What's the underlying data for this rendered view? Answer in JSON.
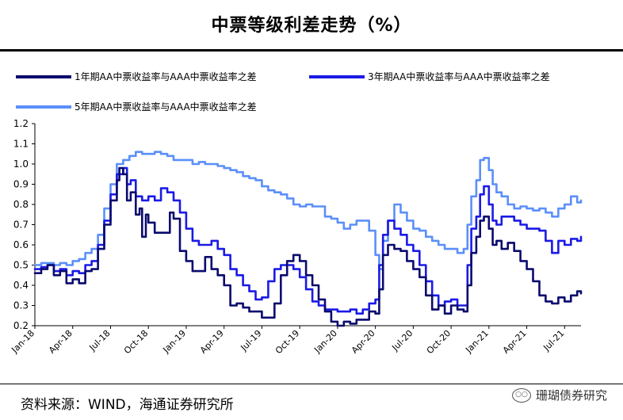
{
  "header": {
    "title": "中票等级利差走势（%）"
  },
  "footer": {
    "source": "资料来源：WIND，海通证券研究所",
    "watermark": "珊瑚债券研究"
  },
  "chart_data": {
    "type": "line",
    "title": "中票等级利差走势（%）",
    "xlabel": "",
    "ylabel": "",
    "ylim": [
      0.2,
      1.2
    ],
    "yticks": [
      "1.2",
      "1.1",
      "1.0",
      "0.9",
      "0.8",
      "0.7",
      "0.6",
      "0.5",
      "0.4",
      "0.3",
      "0.2"
    ],
    "xticks": [
      "Jan-18",
      "Apr-18",
      "Jul-18",
      "Oct-18",
      "Jan-19",
      "Apr-19",
      "Jul-19",
      "Oct-19",
      "Jan-20",
      "Apr-20",
      "Jul-20",
      "Oct-20",
      "Jan-21",
      "Apr-21",
      "Jul-21"
    ],
    "x_range_months": [
      0,
      43.3
    ],
    "series": [
      {
        "name": "1年期AA中票收益率与AAA中票收益率之差",
        "color": "#0a0a6e",
        "points": [
          [
            0,
            0.46
          ],
          [
            0.5,
            0.48
          ],
          [
            1,
            0.5
          ],
          [
            1.5,
            0.45
          ],
          [
            2,
            0.47
          ],
          [
            2.5,
            0.41
          ],
          [
            3,
            0.43
          ],
          [
            3.5,
            0.41
          ],
          [
            4,
            0.47
          ],
          [
            4.5,
            0.48
          ],
          [
            5,
            0.58
          ],
          [
            5.5,
            0.7
          ],
          [
            6,
            0.82
          ],
          [
            6.5,
            0.92
          ],
          [
            6.7,
            0.98
          ],
          [
            7,
            0.95
          ],
          [
            7.3,
            0.82
          ],
          [
            7.6,
            0.86
          ],
          [
            8,
            0.75
          ],
          [
            8.3,
            0.78
          ],
          [
            8.5,
            0.64
          ],
          [
            8.8,
            0.75
          ],
          [
            9,
            0.71
          ],
          [
            9.5,
            0.66
          ],
          [
            10,
            0.66
          ],
          [
            10.5,
            0.66
          ],
          [
            10.7,
            0.76
          ],
          [
            11,
            0.73
          ],
          [
            11.5,
            0.57
          ],
          [
            12,
            0.52
          ],
          [
            12.5,
            0.47
          ],
          [
            13,
            0.47
          ],
          [
            13.5,
            0.54
          ],
          [
            14,
            0.48
          ],
          [
            14.5,
            0.45
          ],
          [
            15,
            0.4
          ],
          [
            15.5,
            0.3
          ],
          [
            16,
            0.31
          ],
          [
            16.5,
            0.29
          ],
          [
            17,
            0.27
          ],
          [
            17.5,
            0.27
          ],
          [
            18,
            0.24
          ],
          [
            18.5,
            0.24
          ],
          [
            19,
            0.31
          ],
          [
            19.5,
            0.45
          ],
          [
            20,
            0.52
          ],
          [
            20.5,
            0.55
          ],
          [
            21,
            0.52
          ],
          [
            21.5,
            0.45
          ],
          [
            22,
            0.4
          ],
          [
            22.5,
            0.33
          ],
          [
            23,
            0.27
          ],
          [
            23.5,
            0.22
          ],
          [
            24,
            0.2
          ],
          [
            24.5,
            0.22
          ],
          [
            25,
            0.21
          ],
          [
            25.5,
            0.23
          ],
          [
            26,
            0.23
          ],
          [
            26.5,
            0.27
          ],
          [
            27,
            0.26
          ],
          [
            27.3,
            0.38
          ],
          [
            27.6,
            0.55
          ],
          [
            28,
            0.6
          ],
          [
            28.5,
            0.58
          ],
          [
            29,
            0.57
          ],
          [
            29.5,
            0.52
          ],
          [
            30,
            0.48
          ],
          [
            30.5,
            0.44
          ],
          [
            31,
            0.35
          ],
          [
            31.5,
            0.28
          ],
          [
            32,
            0.3
          ],
          [
            32.5,
            0.26
          ],
          [
            33,
            0.3
          ],
          [
            33.5,
            0.28
          ],
          [
            34,
            0.27
          ],
          [
            34.3,
            0.4
          ],
          [
            34.6,
            0.56
          ],
          [
            35,
            0.64
          ],
          [
            35.3,
            0.72
          ],
          [
            35.6,
            0.74
          ],
          [
            36,
            0.68
          ],
          [
            36.3,
            0.6
          ],
          [
            36.6,
            0.62
          ],
          [
            37,
            0.58
          ],
          [
            37.5,
            0.61
          ],
          [
            38,
            0.57
          ],
          [
            38.5,
            0.52
          ],
          [
            39,
            0.48
          ],
          [
            39.5,
            0.42
          ],
          [
            40,
            0.35
          ],
          [
            40.5,
            0.32
          ],
          [
            41,
            0.31
          ],
          [
            41.5,
            0.34
          ],
          [
            42,
            0.32
          ],
          [
            42.5,
            0.35
          ],
          [
            43,
            0.37
          ],
          [
            43.3,
            0.36
          ]
        ]
      },
      {
        "name": "3年期AA中票收益率与AAA中票收益率之差",
        "color": "#1a1ae6",
        "points": [
          [
            0,
            0.48
          ],
          [
            0.5,
            0.49
          ],
          [
            1,
            0.5
          ],
          [
            1.5,
            0.47
          ],
          [
            2,
            0.48
          ],
          [
            2.5,
            0.45
          ],
          [
            3,
            0.47
          ],
          [
            3.5,
            0.46
          ],
          [
            4,
            0.5
          ],
          [
            4.5,
            0.52
          ],
          [
            5,
            0.6
          ],
          [
            5.5,
            0.72
          ],
          [
            6,
            0.85
          ],
          [
            6.5,
            0.95
          ],
          [
            7,
            0.98
          ],
          [
            7.3,
            0.9
          ],
          [
            7.6,
            0.92
          ],
          [
            8,
            0.84
          ],
          [
            8.5,
            0.82
          ],
          [
            9,
            0.84
          ],
          [
            9.5,
            0.82
          ],
          [
            10,
            0.88
          ],
          [
            10.5,
            0.86
          ],
          [
            11,
            0.82
          ],
          [
            11.5,
            0.76
          ],
          [
            12,
            0.68
          ],
          [
            12.5,
            0.62
          ],
          [
            13,
            0.6
          ],
          [
            13.5,
            0.6
          ],
          [
            14,
            0.62
          ],
          [
            14.5,
            0.58
          ],
          [
            15,
            0.55
          ],
          [
            15.5,
            0.48
          ],
          [
            16,
            0.45
          ],
          [
            16.5,
            0.4
          ],
          [
            17,
            0.37
          ],
          [
            17.5,
            0.33
          ],
          [
            18,
            0.34
          ],
          [
            18.5,
            0.42
          ],
          [
            19,
            0.48
          ],
          [
            19.5,
            0.5
          ],
          [
            20,
            0.5
          ],
          [
            20.5,
            0.48
          ],
          [
            21,
            0.44
          ],
          [
            21.5,
            0.38
          ],
          [
            22,
            0.32
          ],
          [
            22.5,
            0.3
          ],
          [
            23,
            0.28
          ],
          [
            23.5,
            0.28
          ],
          [
            24,
            0.27
          ],
          [
            24.5,
            0.27
          ],
          [
            25,
            0.28
          ],
          [
            25.5,
            0.26
          ],
          [
            26,
            0.28
          ],
          [
            26.5,
            0.31
          ],
          [
            27,
            0.33
          ],
          [
            27.3,
            0.5
          ],
          [
            27.6,
            0.65
          ],
          [
            28,
            0.72
          ],
          [
            28.5,
            0.68
          ],
          [
            29,
            0.65
          ],
          [
            29.5,
            0.6
          ],
          [
            30,
            0.57
          ],
          [
            30.5,
            0.5
          ],
          [
            31,
            0.42
          ],
          [
            31.5,
            0.35
          ],
          [
            32,
            0.3
          ],
          [
            32.5,
            0.32
          ],
          [
            33,
            0.33
          ],
          [
            33.5,
            0.3
          ],
          [
            34,
            0.3
          ],
          [
            34.3,
            0.5
          ],
          [
            34.6,
            0.68
          ],
          [
            35,
            0.74
          ],
          [
            35.3,
            0.85
          ],
          [
            35.6,
            0.89
          ],
          [
            36,
            0.8
          ],
          [
            36.3,
            0.72
          ],
          [
            36.6,
            0.7
          ],
          [
            37,
            0.74
          ],
          [
            37.5,
            0.74
          ],
          [
            38,
            0.72
          ],
          [
            38.5,
            0.7
          ],
          [
            39,
            0.68
          ],
          [
            39.5,
            0.68
          ],
          [
            40,
            0.67
          ],
          [
            40.5,
            0.62
          ],
          [
            41,
            0.56
          ],
          [
            41.5,
            0.62
          ],
          [
            42,
            0.6
          ],
          [
            42.5,
            0.63
          ],
          [
            43,
            0.62
          ],
          [
            43.3,
            0.64
          ]
        ]
      },
      {
        "name": "5年期AA中票收益率与AAA中票收益率之差",
        "color": "#5b8ff9",
        "points": [
          [
            0,
            0.5
          ],
          [
            0.5,
            0.51
          ],
          [
            1,
            0.51
          ],
          [
            1.5,
            0.5
          ],
          [
            2,
            0.51
          ],
          [
            2.5,
            0.5
          ],
          [
            3,
            0.52
          ],
          [
            3.5,
            0.53
          ],
          [
            4,
            0.56
          ],
          [
            4.5,
            0.58
          ],
          [
            5,
            0.65
          ],
          [
            5.5,
            0.78
          ],
          [
            6,
            0.9
          ],
          [
            6.5,
            1.0
          ],
          [
            7,
            1.02
          ],
          [
            7.5,
            1.04
          ],
          [
            8,
            1.06
          ],
          [
            8.5,
            1.05
          ],
          [
            9,
            1.05
          ],
          [
            9.5,
            1.06
          ],
          [
            10,
            1.05
          ],
          [
            10.5,
            1.04
          ],
          [
            11,
            1.02
          ],
          [
            11.5,
            1.02
          ],
          [
            12,
            1.02
          ],
          [
            12.5,
            1.0
          ],
          [
            13,
            1.01
          ],
          [
            13.5,
            1.0
          ],
          [
            14,
            1.0
          ],
          [
            14.5,
            0.99
          ],
          [
            15,
            0.98
          ],
          [
            15.5,
            0.97
          ],
          [
            16,
            0.96
          ],
          [
            16.5,
            0.94
          ],
          [
            17,
            0.93
          ],
          [
            17.5,
            0.92
          ],
          [
            18,
            0.89
          ],
          [
            18.5,
            0.87
          ],
          [
            19,
            0.86
          ],
          [
            19.5,
            0.85
          ],
          [
            20,
            0.83
          ],
          [
            20.5,
            0.8
          ],
          [
            21,
            0.79
          ],
          [
            21.5,
            0.8
          ],
          [
            22,
            0.79
          ],
          [
            22.5,
            0.79
          ],
          [
            23,
            0.74
          ],
          [
            23.5,
            0.73
          ],
          [
            24,
            0.71
          ],
          [
            24.5,
            0.68
          ],
          [
            25,
            0.7
          ],
          [
            25.5,
            0.72
          ],
          [
            26,
            0.72
          ],
          [
            26.5,
            0.67
          ],
          [
            27,
            0.55
          ],
          [
            27.3,
            0.48
          ],
          [
            27.6,
            0.62
          ],
          [
            28,
            0.72
          ],
          [
            28.5,
            0.8
          ],
          [
            29,
            0.76
          ],
          [
            29.5,
            0.72
          ],
          [
            30,
            0.68
          ],
          [
            30.5,
            0.67
          ],
          [
            31,
            0.64
          ],
          [
            31.5,
            0.62
          ],
          [
            32,
            0.6
          ],
          [
            32.5,
            0.58
          ],
          [
            33,
            0.58
          ],
          [
            33.5,
            0.56
          ],
          [
            34,
            0.58
          ],
          [
            34.3,
            0.7
          ],
          [
            34.6,
            0.84
          ],
          [
            35,
            0.92
          ],
          [
            35.3,
            1.02
          ],
          [
            35.6,
            1.03
          ],
          [
            36,
            0.97
          ],
          [
            36.3,
            0.9
          ],
          [
            36.6,
            0.86
          ],
          [
            37,
            0.84
          ],
          [
            37.5,
            0.8
          ],
          [
            38,
            0.78
          ],
          [
            38.5,
            0.79
          ],
          [
            39,
            0.78
          ],
          [
            39.5,
            0.77
          ],
          [
            40,
            0.78
          ],
          [
            40.5,
            0.76
          ],
          [
            41,
            0.74
          ],
          [
            41.5,
            0.78
          ],
          [
            42,
            0.8
          ],
          [
            42.5,
            0.84
          ],
          [
            43,
            0.81
          ],
          [
            43.3,
            0.82
          ]
        ]
      }
    ]
  }
}
